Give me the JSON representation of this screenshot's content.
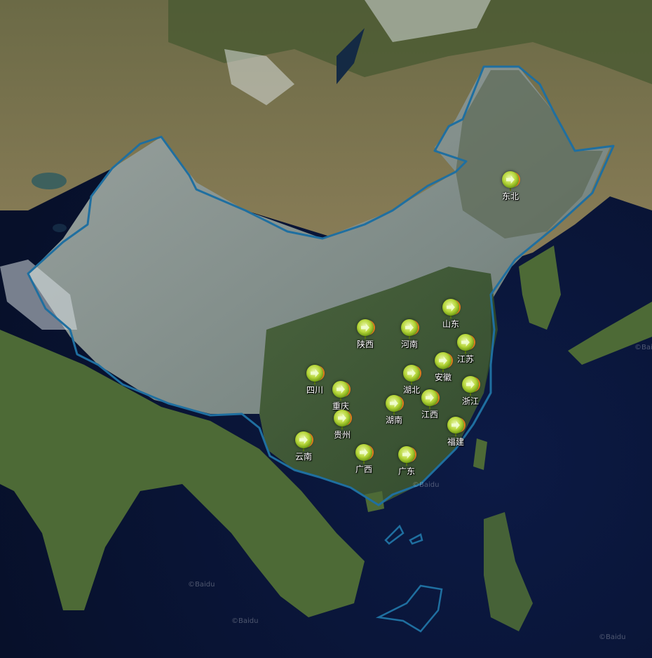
{
  "map": {
    "colors": {
      "border": "#1f6fa0",
      "ocean": "#0b1634",
      "land_green": "#3b5a2a",
      "desert": "#8a7a55",
      "marker_green": "#9cc82a",
      "marker_orange": "#e2791d"
    },
    "markers": [
      {
        "label": "东北",
        "icon": "pin-icon"
      },
      {
        "label": "山东",
        "icon": "pin-icon"
      },
      {
        "label": "陕西",
        "icon": "pin-icon"
      },
      {
        "label": "河南",
        "icon": "pin-icon"
      },
      {
        "label": "江苏",
        "icon": "pin-icon"
      },
      {
        "label": "四川",
        "icon": "pin-icon"
      },
      {
        "label": "湖北",
        "icon": "pin-icon"
      },
      {
        "label": "安徽",
        "icon": "pin-icon"
      },
      {
        "label": "重庆",
        "icon": "pin-icon"
      },
      {
        "label": "浙江",
        "icon": "pin-icon"
      },
      {
        "label": "湖南",
        "icon": "pin-icon"
      },
      {
        "label": "江西",
        "icon": "pin-icon"
      },
      {
        "label": "贵州",
        "icon": "pin-icon"
      },
      {
        "label": "福建",
        "icon": "pin-icon"
      },
      {
        "label": "云南",
        "icon": "pin-icon"
      },
      {
        "label": "广西",
        "icon": "pin-icon"
      },
      {
        "label": "广东",
        "icon": "pin-icon"
      }
    ],
    "watermark": "©Baidu"
  }
}
